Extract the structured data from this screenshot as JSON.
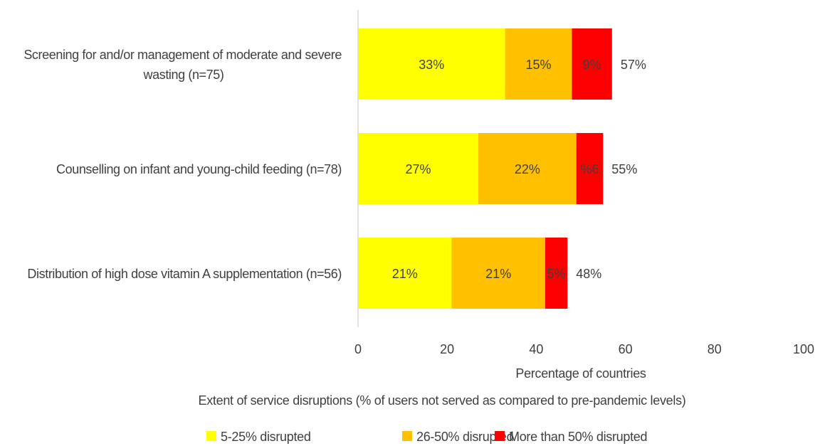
{
  "chart_data": {
    "type": "bar",
    "orientation": "horizontal",
    "stacked": true,
    "categories": [
      [
        "Screening for and/or management of moderate and severe",
        "wasting (n=75)"
      ],
      [
        "Counselling on infant and young-child feeding  (n=78)"
      ],
      [
        "Distribution of high dose vitamin A supplementation (n=56)"
      ]
    ],
    "series": [
      {
        "name": "5-25% disrupted",
        "color": "#ffff00",
        "values": [
          33,
          27,
          21
        ],
        "labels": [
          "33%",
          "27%",
          "21%"
        ]
      },
      {
        "name": "26-50% disrupted",
        "color": "#ffc000",
        "values": [
          15,
          22,
          21
        ],
        "labels": [
          "15%",
          "22%",
          "21%"
        ]
      },
      {
        "name": "More than 50% disrupted",
        "color": "#ff0000",
        "values": [
          9,
          6,
          5
        ],
        "labels": [
          "9%",
          "%6",
          "5%"
        ]
      }
    ],
    "totals": [
      "57%",
      "55%",
      "48%"
    ],
    "xlim": [
      0,
      100
    ],
    "xticks": [
      0,
      20,
      40,
      60,
      80,
      100
    ],
    "xlabel": "Percentage of countries",
    "subtitle": "Extent of service disruptions (% of users not served as compared to pre-pandemic levels)",
    "grid": false,
    "legend": "bottom"
  }
}
